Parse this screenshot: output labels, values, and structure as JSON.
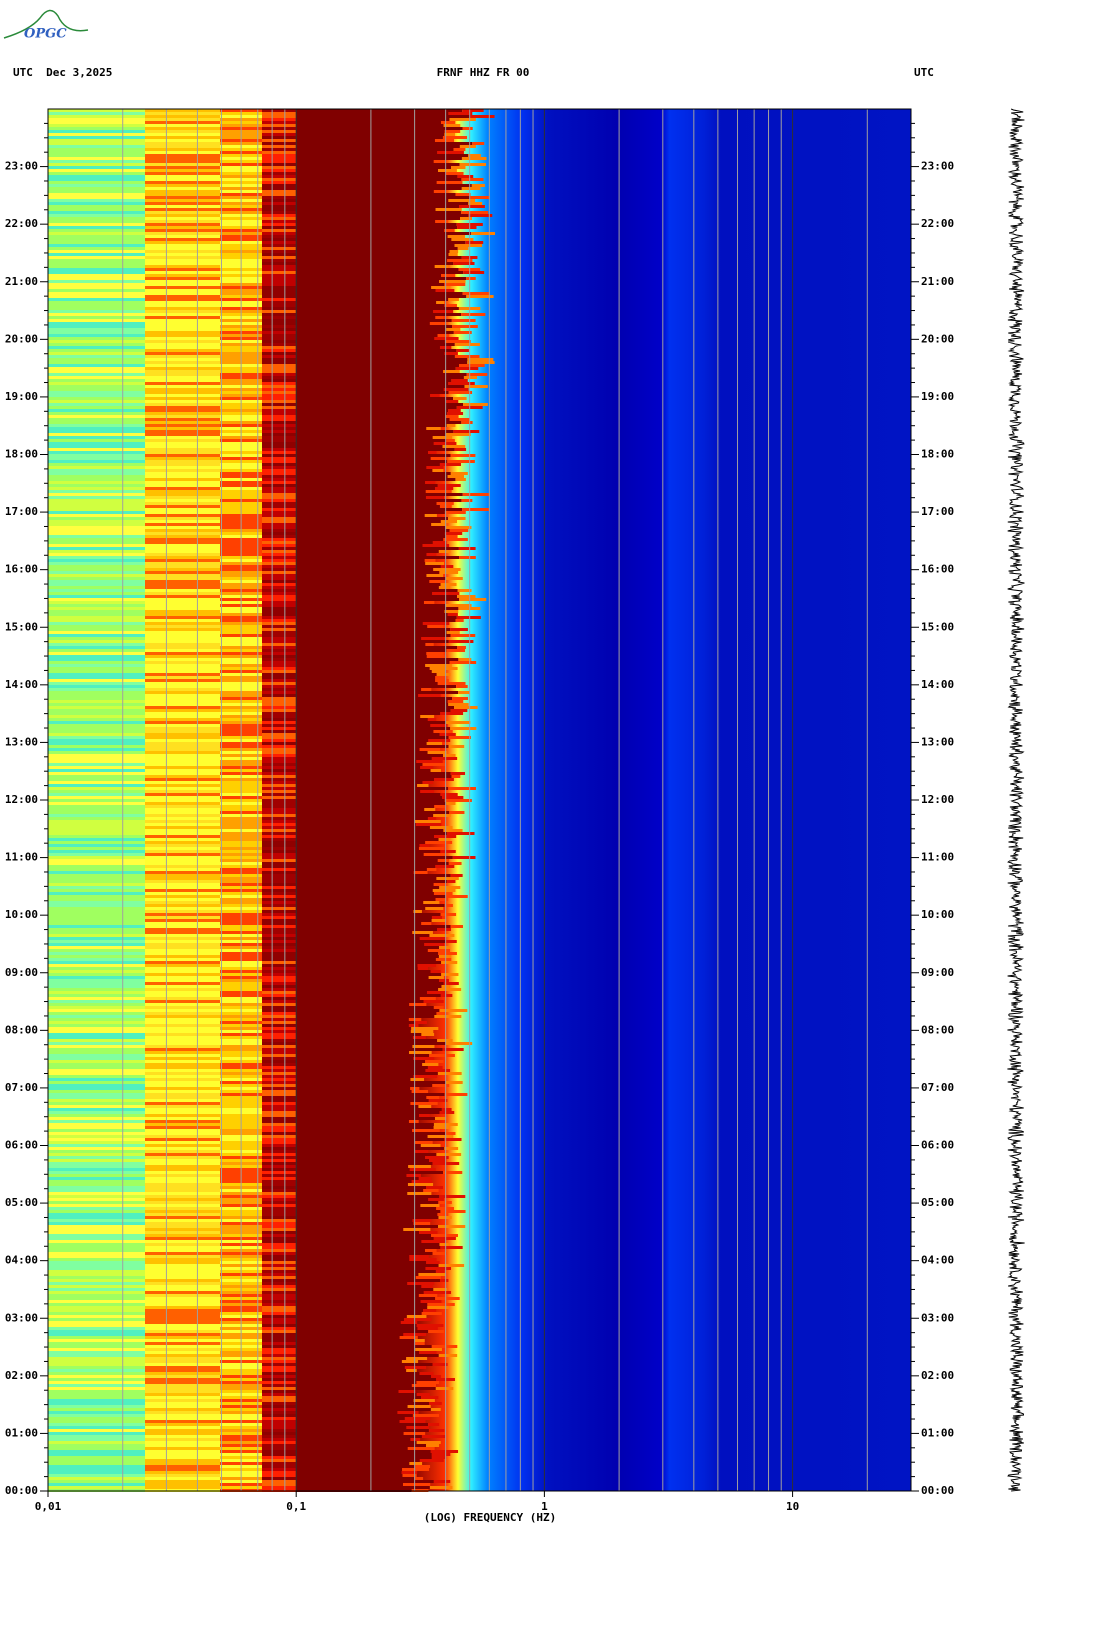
{
  "logo": "OPGC",
  "chart_data": {
    "type": "spectrogram",
    "title": "FRNF HHZ FR 00",
    "left_label": "UTC  Dec 3,2025",
    "right_label": "UTC",
    "xlabel": "(LOG) FREQUENCY (HZ)",
    "xscale": "log",
    "xlim": [
      0.01,
      30
    ],
    "xticks": [
      {
        "value": 0.01,
        "label": "0,01"
      },
      {
        "value": 0.1,
        "label": "0,1"
      },
      1,
      10
    ],
    "ylim": [
      0,
      24
    ],
    "yticks": [
      {
        "value": 0,
        "label": "00:00"
      },
      {
        "value": 1,
        "label": "01:00"
      },
      {
        "value": 2,
        "label": "02:00"
      },
      {
        "value": 3,
        "label": "03:00"
      },
      {
        "value": 4,
        "label": "04:00"
      },
      {
        "value": 5,
        "label": "05:00"
      },
      {
        "value": 6,
        "label": "06:00"
      },
      {
        "value": 7,
        "label": "07:00"
      },
      {
        "value": 8,
        "label": "08:00"
      },
      {
        "value": 9,
        "label": "09:00"
      },
      {
        "value": 10,
        "label": "10:00"
      },
      {
        "value": 11,
        "label": "11:00"
      },
      {
        "value": 12,
        "label": "12:00"
      },
      {
        "value": 13,
        "label": "13:00"
      },
      {
        "value": 14,
        "label": "14:00"
      },
      {
        "value": 15,
        "label": "15:00"
      },
      {
        "value": 16,
        "label": "16:00"
      },
      {
        "value": 17,
        "label": "17:00"
      },
      {
        "value": 18,
        "label": "18:00"
      },
      {
        "value": 19,
        "label": "19:00"
      },
      {
        "value": 20,
        "label": "20:00"
      },
      {
        "value": 21,
        "label": "21:00"
      },
      {
        "value": 22,
        "label": "22:00"
      },
      {
        "value": 23,
        "label": "23:00"
      }
    ],
    "grid": true
  }
}
